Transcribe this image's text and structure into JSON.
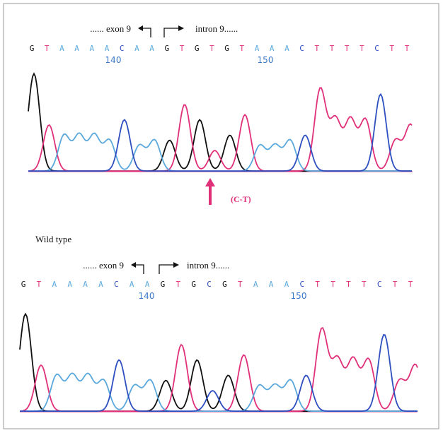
{
  "panels": [
    {
      "exon_label": "...... exon 9",
      "intron_label": "intron 9......",
      "sequence": [
        "G",
        "T",
        "A",
        "A",
        "A",
        "A",
        "C",
        "A",
        "A",
        "G",
        "T",
        "G",
        "T",
        "G",
        "T",
        "A",
        "A",
        "A",
        "C",
        "T",
        "T",
        "T",
        "T",
        "C",
        "T",
        "T"
      ],
      "position_labels": [
        "140",
        "150"
      ],
      "mutation_label": "(C-T)"
    },
    {
      "caption": "Wild type",
      "exon_label": "...... exon 9",
      "intron_label": "intron 9......",
      "sequence": [
        "G",
        "T",
        "A",
        "A",
        "A",
        "A",
        "C",
        "A",
        "A",
        "G",
        "T",
        "G",
        "C",
        "G",
        "T",
        "A",
        "A",
        "A",
        "C",
        "T",
        "T",
        "T",
        "T",
        "C",
        "T",
        "T"
      ],
      "position_labels": [
        "140",
        "150"
      ]
    }
  ]
}
